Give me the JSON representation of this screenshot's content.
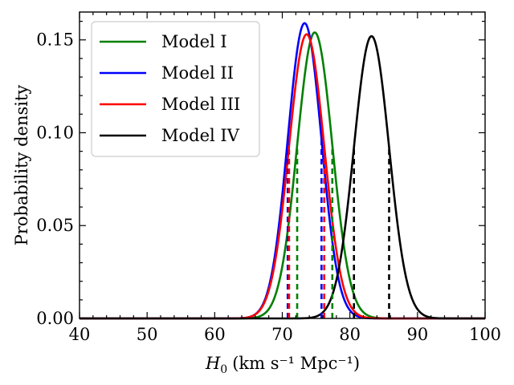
{
  "chart_data": {
    "type": "line",
    "title": "",
    "xlabel_main": "H",
    "xlabel_sub": "0",
    "xlabel_units": "(km s⁻¹ Mpc⁻¹)",
    "ylabel": "Probability density",
    "xlim": [
      40,
      100
    ],
    "ylim": [
      0,
      0.165
    ],
    "xticks": [
      40,
      50,
      60,
      70,
      80,
      90,
      100
    ],
    "yticks": [
      0.0,
      0.05,
      0.1,
      0.15
    ],
    "xtick_labels": [
      "40",
      "50",
      "60",
      "70",
      "80",
      "90",
      "100"
    ],
    "ytick_labels": [
      "0.00",
      "0.05",
      "0.10",
      "0.15"
    ],
    "legend_position": "top-left",
    "series": [
      {
        "name": "Model I",
        "color": "#008000",
        "mean": 74.8,
        "sd": 2.6,
        "peak": 0.154,
        "dashed_bounds": [
          72.2,
          77.4
        ]
      },
      {
        "name": "Model II",
        "color": "#0000ff",
        "mean": 73.3,
        "sd": 2.5,
        "peak": 0.159,
        "dashed_bounds": [
          70.8,
          75.8
        ]
      },
      {
        "name": "Model III",
        "color": "#ff0000",
        "mean": 73.6,
        "sd": 2.6,
        "peak": 0.153,
        "dashed_bounds": [
          71.0,
          76.2
        ]
      },
      {
        "name": "Model IV",
        "color": "#000000",
        "mean": 83.2,
        "sd": 2.6,
        "peak": 0.152,
        "dashed_bounds": [
          80.6,
          85.8
        ]
      }
    ]
  }
}
